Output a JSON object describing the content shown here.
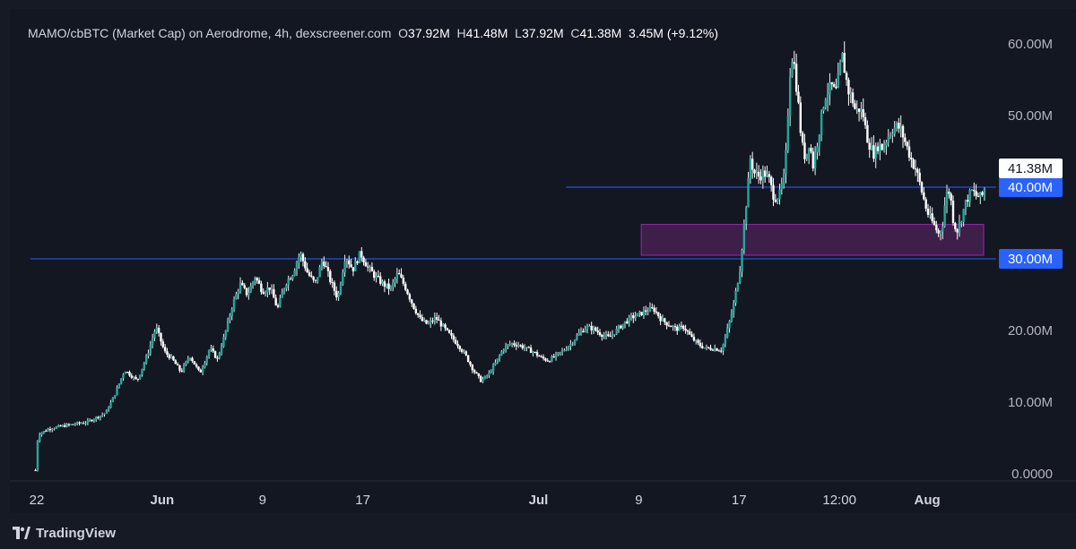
{
  "header": {
    "pair": "MAMO/cbBTC (Market Cap) on Aerodrome, 4h, dexscreener.com",
    "open_label": "O",
    "open_value": "37.92M",
    "high_label": "H",
    "high_value": "41.48M",
    "low_label": "L",
    "low_value": "37.92M",
    "close_label": "C",
    "close_value": "41.38M",
    "change": "3.45M (+9.12%)"
  },
  "footer": {
    "brand": "TradingView"
  },
  "colors": {
    "background": "#131722",
    "candle_up": "#26a69a",
    "candle_wick": "#e6f4f1",
    "candle_down": "#ffffff",
    "level_line": "#2962ff",
    "zone_fill": "#3d1f4a",
    "zone_border": "#9c27b0",
    "price_tag_bg": "#ffffff",
    "level_tag_bg": "#2962ff"
  },
  "chart_data": {
    "type": "candlestick",
    "title": "MAMO/cbBTC (Market Cap) on Aerodrome, 4h, dexscreener.com",
    "y_ticks": [
      "60.00M",
      "50.00M",
      "40.00M",
      "30.00M",
      "20.00M",
      "10.00M",
      "0.0000"
    ],
    "y_tick_values": [
      60,
      50,
      40,
      30,
      20,
      10,
      0
    ],
    "y_unit": "M",
    "ylim": [
      -3,
      67
    ],
    "x_ticks": [
      "22",
      "Jun",
      "9",
      "17",
      "Jul",
      "9",
      "17",
      "12:00",
      "Aug"
    ],
    "x_tick_days": [
      22,
      32,
      40,
      48,
      62,
      70,
      78,
      86,
      93
    ],
    "xlim": [
      21.5,
      98.5
    ],
    "last_price_label": "41.38M",
    "last_price": 41.38,
    "horizontal_levels": [
      {
        "label": "40.00M",
        "value": 40.0,
        "from_day": 64.2
      },
      {
        "label": "30.00M",
        "value": 30.0,
        "from_day": 21.5
      }
    ],
    "zone": {
      "from_day": 70.2,
      "to_day": 97.5,
      "low": 30.5,
      "high": 34.8
    },
    "price_path": [
      [
        21.9,
        0.5
      ],
      [
        22.1,
        5.5
      ],
      [
        23.0,
        6.3
      ],
      [
        24.5,
        6.8
      ],
      [
        26.0,
        7.2
      ],
      [
        27.5,
        8.5
      ],
      [
        28.2,
        11.0
      ],
      [
        29.0,
        14.5
      ],
      [
        30.0,
        13.0
      ],
      [
        30.8,
        16.5
      ],
      [
        31.5,
        20.5
      ],
      [
        32.2,
        17.0
      ],
      [
        32.8,
        16.0
      ],
      [
        33.5,
        14.2
      ],
      [
        34.2,
        16.5
      ],
      [
        35.0,
        14.0
      ],
      [
        35.8,
        17.5
      ],
      [
        36.4,
        16.0
      ],
      [
        37.0,
        19.5
      ],
      [
        37.6,
        23.5
      ],
      [
        38.2,
        26.5
      ],
      [
        38.8,
        25.0
      ],
      [
        39.4,
        27.5
      ],
      [
        40.0,
        25.5
      ],
      [
        40.6,
        26.0
      ],
      [
        41.2,
        23.0
      ],
      [
        41.8,
        26.5
      ],
      [
        42.4,
        28.0
      ],
      [
        43.0,
        30.8
      ],
      [
        43.6,
        28.0
      ],
      [
        44.2,
        26.5
      ],
      [
        44.8,
        30.0
      ],
      [
        45.4,
        27.0
      ],
      [
        46.0,
        24.5
      ],
      [
        46.6,
        30.5
      ],
      [
        47.2,
        28.5
      ],
      [
        47.8,
        30.8
      ],
      [
        48.4,
        28.8
      ],
      [
        49.0,
        27.5
      ],
      [
        49.6,
        26.5
      ],
      [
        50.2,
        25.8
      ],
      [
        50.8,
        28.0
      ],
      [
        51.4,
        26.0
      ],
      [
        52.0,
        23.5
      ],
      [
        52.6,
        21.5
      ],
      [
        53.2,
        20.8
      ],
      [
        53.8,
        21.8
      ],
      [
        54.4,
        20.5
      ],
      [
        55.0,
        19.2
      ],
      [
        55.6,
        18.0
      ],
      [
        56.2,
        16.5
      ],
      [
        56.8,
        14.5
      ],
      [
        57.4,
        13.0
      ],
      [
        58.0,
        13.8
      ],
      [
        58.6,
        15.5
      ],
      [
        59.2,
        17.5
      ],
      [
        59.8,
        18.2
      ],
      [
        60.4,
        18.0
      ],
      [
        61.0,
        17.5
      ],
      [
        61.6,
        17.0
      ],
      [
        62.2,
        16.2
      ],
      [
        62.8,
        15.8
      ],
      [
        63.4,
        16.5
      ],
      [
        64.0,
        17.2
      ],
      [
        64.6,
        18.2
      ],
      [
        65.2,
        19.5
      ],
      [
        65.8,
        20.5
      ],
      [
        66.4,
        20.2
      ],
      [
        67.0,
        19.5
      ],
      [
        67.6,
        19.0
      ],
      [
        68.2,
        20.0
      ],
      [
        68.8,
        21.0
      ],
      [
        69.4,
        21.8
      ],
      [
        70.0,
        22.2
      ],
      [
        70.6,
        22.8
      ],
      [
        71.2,
        23.0
      ],
      [
        71.8,
        21.5
      ],
      [
        72.4,
        20.8
      ],
      [
        73.0,
        20.2
      ],
      [
        73.6,
        20.5
      ],
      [
        74.2,
        19.0
      ],
      [
        74.8,
        18.0
      ],
      [
        75.4,
        17.5
      ],
      [
        76.0,
        17.5
      ],
      [
        76.6,
        17.3
      ],
      [
        76.9,
        19.0
      ],
      [
        77.2,
        21.0
      ],
      [
        77.5,
        23.0
      ],
      [
        77.8,
        26.0
      ],
      [
        78.1,
        29.0
      ],
      [
        78.3,
        33.0
      ],
      [
        78.5,
        36.5
      ],
      [
        78.7,
        40.0
      ],
      [
        78.9,
        44.0
      ],
      [
        79.2,
        42.0
      ],
      [
        79.6,
        41.5
      ],
      [
        80.0,
        42.0
      ],
      [
        80.4,
        41.0
      ],
      [
        80.8,
        38.5
      ],
      [
        81.2,
        38.8
      ],
      [
        81.6,
        41.5
      ],
      [
        81.8,
        46.0
      ],
      [
        82.0,
        55.0
      ],
      [
        82.2,
        58.5
      ],
      [
        82.4,
        57.0
      ],
      [
        82.7,
        52.0
      ],
      [
        83.0,
        46.0
      ],
      [
        83.3,
        44.0
      ],
      [
        83.6,
        46.5
      ],
      [
        83.9,
        43.0
      ],
      [
        84.2,
        46.0
      ],
      [
        84.5,
        49.0
      ],
      [
        84.8,
        52.5
      ],
      [
        85.1,
        53.5
      ],
      [
        85.4,
        54.0
      ],
      [
        85.7,
        53.0
      ],
      [
        86.0,
        56.0
      ],
      [
        86.2,
        58.5
      ],
      [
        86.4,
        56.5
      ],
      [
        86.7,
        53.5
      ],
      [
        87.0,
        52.5
      ],
      [
        87.3,
        50.5
      ],
      [
        87.6,
        51.0
      ],
      [
        87.9,
        50.0
      ],
      [
        88.2,
        47.0
      ],
      [
        88.5,
        45.5
      ],
      [
        88.8,
        44.5
      ],
      [
        89.1,
        46.0
      ],
      [
        89.4,
        45.5
      ],
      [
        89.7,
        46.5
      ],
      [
        90.0,
        47.5
      ],
      [
        90.3,
        48.2
      ],
      [
        90.6,
        48.5
      ],
      [
        90.9,
        48.0
      ],
      [
        91.2,
        46.5
      ],
      [
        91.5,
        45.0
      ],
      [
        91.8,
        43.5
      ],
      [
        92.1,
        42.5
      ],
      [
        92.4,
        40.5
      ],
      [
        92.7,
        38.5
      ],
      [
        93.0,
        36.5
      ],
      [
        93.3,
        35.5
      ],
      [
        93.6,
        34.5
      ],
      [
        93.9,
        33.5
      ],
      [
        94.2,
        34.5
      ],
      [
        94.5,
        39.0
      ],
      [
        94.8,
        39.5
      ],
      [
        95.1,
        35.0
      ],
      [
        95.4,
        34.0
      ],
      [
        95.7,
        35.5
      ],
      [
        96.0,
        37.5
      ],
      [
        96.3,
        38.8
      ],
      [
        96.6,
        39.5
      ],
      [
        96.9,
        38.8
      ],
      [
        97.2,
        38.6
      ],
      [
        97.5,
        39.0
      ],
      [
        97.7,
        41.38
      ]
    ]
  }
}
